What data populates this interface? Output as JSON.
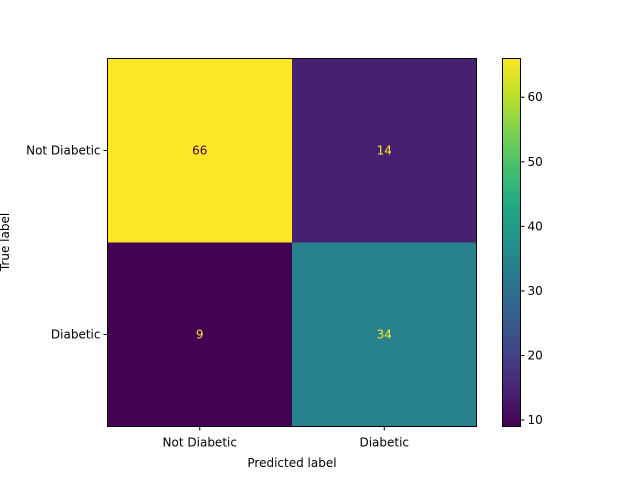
{
  "chart_data": {
    "type": "heatmap",
    "title": "",
    "xlabel": "Predicted label",
    "ylabel": "True label",
    "x_categories": [
      "Not Diabetic",
      "Diabetic"
    ],
    "y_categories": [
      "Not Diabetic",
      "Diabetic"
    ],
    "values": [
      [
        66,
        14
      ],
      [
        9,
        34
      ]
    ],
    "cell_labels": [
      [
        "66",
        "14"
      ],
      [
        "9",
        "34"
      ]
    ],
    "colormap": "viridis",
    "colorbar": {
      "range": [
        9,
        66
      ],
      "ticks": [
        10,
        20,
        30,
        40,
        50,
        60
      ],
      "tick_labels": [
        "10",
        "20",
        "30",
        "40",
        "50",
        "60"
      ]
    },
    "grid": false
  }
}
